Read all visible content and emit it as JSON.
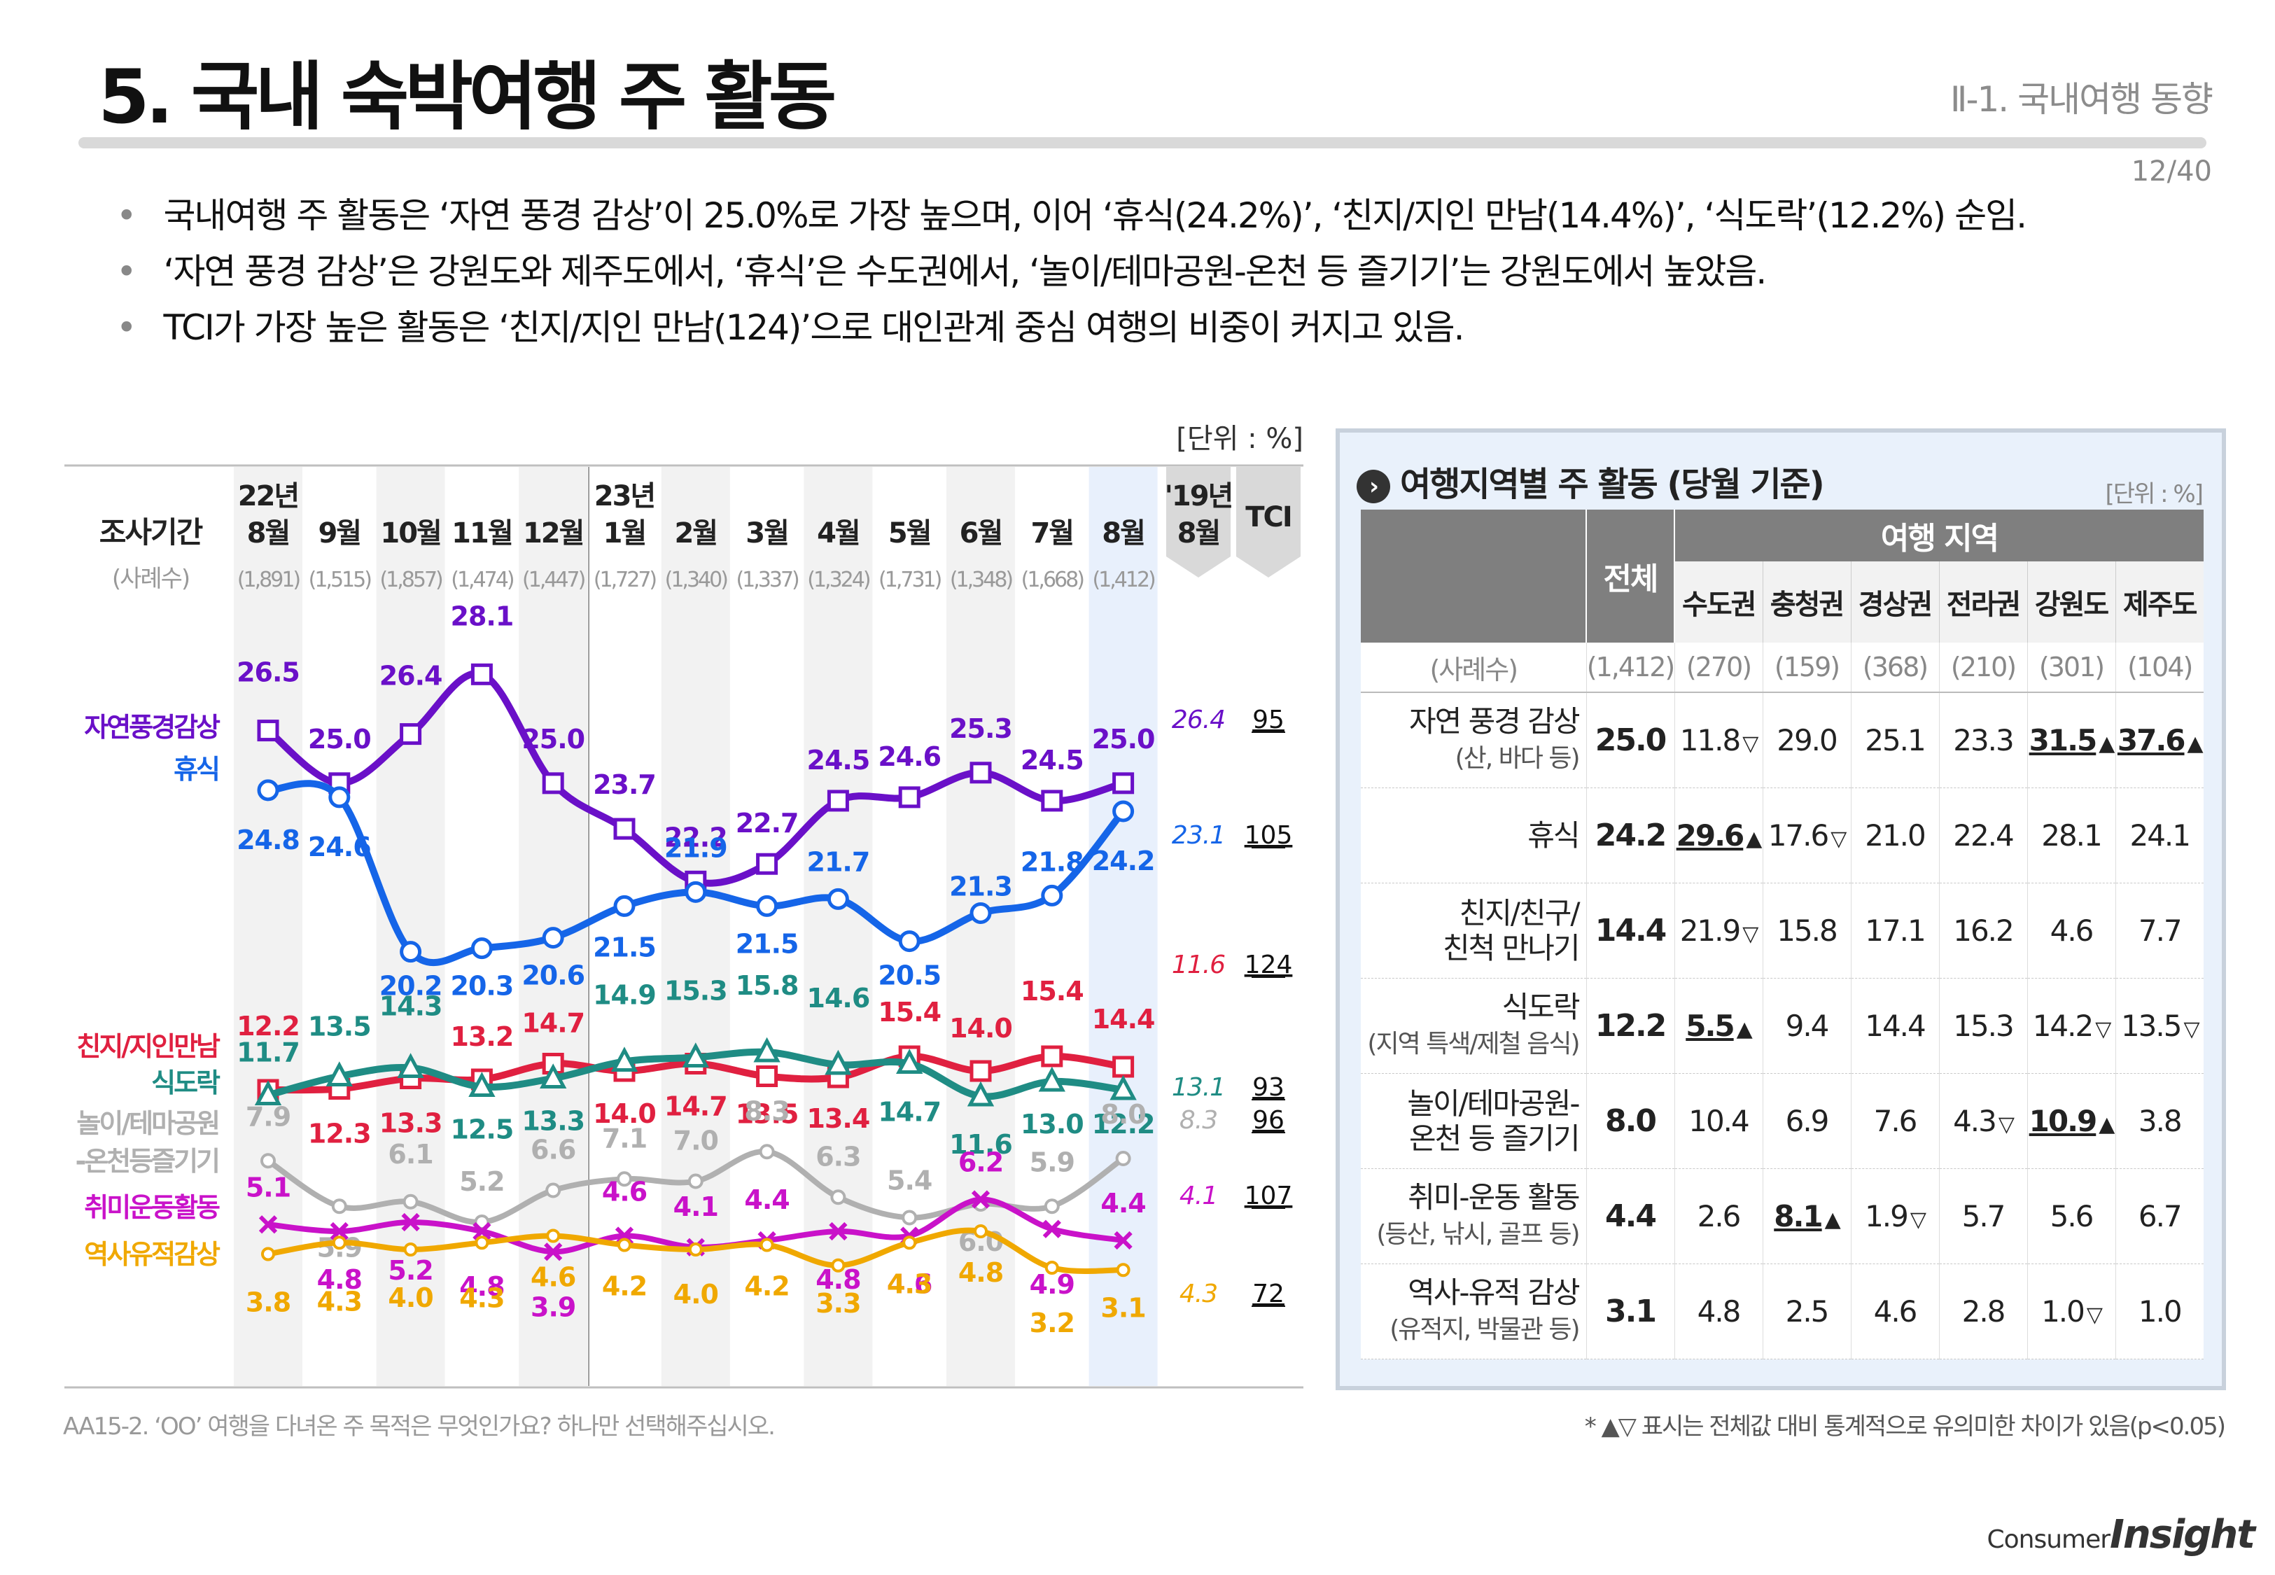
{
  "header": {
    "title": "5. 국내 숙박여행 주 활동",
    "section": "Ⅱ-1. 국내여행 동향",
    "page": "12/40"
  },
  "bullets": [
    "국내여행 주 활동은 ‘자연 풍경 감상’이 25.0%로 가장 높으며, 이어 ‘휴식(24.2%)’, ‘친지/지인 만남(14.4%)’, ‘식도락’(12.2%) 순임.",
    "‘자연 풍경 감상’은 강원도와 제주도에서, ‘휴식’은 수도권에서, ‘놀이/테마공원-온천 등 즐기기’는 강원도에서 높았음.",
    "TCI가 가장 높은 활동은 ‘친지/지인 만남(124)’으로 대인관계 중심 여행의 비중이 커지고 있음."
  ],
  "chart_data": {
    "type": "line",
    "unit_label": "[단위 : %]",
    "row_label": "조사기간",
    "n_label": "(사례수)",
    "categories": [
      "22년\n8월",
      "9월",
      "10월",
      "11월",
      "12월",
      "23년\n1월",
      "2월",
      "3월",
      "4월",
      "5월",
      "6월",
      "7월",
      "8월"
    ],
    "sample_sizes": [
      "(1,891)",
      "(1,515)",
      "(1,857)",
      "(1,474)",
      "(1,447)",
      "(1,727)",
      "(1,340)",
      "(1,337)",
      "(1,324)",
      "(1,731)",
      "(1,348)",
      "(1,668)",
      "(1,412)"
    ],
    "ref_header": "'19년\n8월",
    "tci_header": "TCI",
    "series": [
      {
        "name": "자연풍경감상",
        "color": "#6a10c8",
        "marker": "square",
        "values": [
          26.5,
          25.0,
          26.4,
          28.1,
          25.0,
          23.7,
          22.2,
          22.7,
          24.5,
          24.6,
          25.3,
          24.5,
          25.0
        ],
        "ref": "26.4",
        "tci": "95"
      },
      {
        "name": "휴식",
        "color": "#1565e8",
        "marker": "circle",
        "values": [
          24.8,
          24.6,
          20.2,
          20.3,
          20.6,
          21.5,
          21.9,
          21.5,
          21.7,
          20.5,
          21.3,
          21.8,
          24.2
        ],
        "ref": "23.1",
        "tci": "105"
      },
      {
        "name": "친지/지인만남",
        "color": "#e02040",
        "marker": "square",
        "values": [
          12.2,
          12.3,
          13.3,
          13.2,
          14.7,
          14.0,
          14.7,
          13.5,
          13.4,
          15.4,
          14.0,
          15.4,
          14.4
        ],
        "ref": "11.6",
        "tci": "124"
      },
      {
        "name": "식도락",
        "color": "#1f8c84",
        "marker": "triangle",
        "values": [
          11.7,
          13.5,
          14.3,
          12.5,
          13.3,
          14.9,
          15.3,
          15.8,
          14.6,
          14.7,
          11.6,
          13.0,
          12.2
        ],
        "ref": "13.1",
        "tci": "93"
      },
      {
        "name": "놀이/테마공원\n-온천등즐기기",
        "color": "#b0b0b0",
        "marker": "diamond",
        "values": [
          7.9,
          5.9,
          6.1,
          5.2,
          6.6,
          7.1,
          7.0,
          8.3,
          6.3,
          5.4,
          6.0,
          5.9,
          8.0
        ],
        "ref": "8.3",
        "tci": "96"
      },
      {
        "name": "취미운동활동",
        "color": "#c912c9",
        "marker": "x",
        "values": [
          5.1,
          4.8,
          5.2,
          4.8,
          3.9,
          4.6,
          4.1,
          4.4,
          4.8,
          4.6,
          6.2,
          4.9,
          4.4
        ],
        "ref": "4.1",
        "tci": "107"
      },
      {
        "name": "역사유적감상",
        "color": "#f0a800",
        "marker": "dot",
        "values": [
          3.8,
          4.3,
          4.0,
          4.3,
          4.6,
          4.2,
          4.0,
          4.2,
          3.3,
          4.3,
          4.8,
          3.2,
          3.1
        ],
        "ref": "4.3",
        "tci": "72"
      }
    ]
  },
  "region_table": {
    "title": "여행지역별 주 활동 (당월 기준)",
    "unit": "[단위 : %]",
    "total_header": "전체",
    "region_header": "여행 지역",
    "regions": [
      "수도권",
      "충청권",
      "경상권",
      "전라권",
      "강원도",
      "제주도"
    ],
    "n_label": "(사례수)",
    "n_values": [
      "(1,412)",
      "(270)",
      "(159)",
      "(368)",
      "(210)",
      "(301)",
      "(104)"
    ],
    "rows": [
      {
        "label": "자연 풍경 감상",
        "sub": "(산, 바다 등)",
        "total": "25.0",
        "cells": [
          {
            "v": "11.8",
            "m": "▽",
            "u": false
          },
          {
            "v": "29.0",
            "m": "",
            "u": false
          },
          {
            "v": "25.1",
            "m": "",
            "u": false
          },
          {
            "v": "23.3",
            "m": "",
            "u": false
          },
          {
            "v": "31.5",
            "m": "▲",
            "u": true
          },
          {
            "v": "37.6",
            "m": "▲",
            "u": true
          }
        ]
      },
      {
        "label": "휴식",
        "sub": "",
        "total": "24.2",
        "cells": [
          {
            "v": "29.6",
            "m": "▲",
            "u": true
          },
          {
            "v": "17.6",
            "m": "▽",
            "u": false
          },
          {
            "v": "21.0",
            "m": "",
            "u": false
          },
          {
            "v": "22.4",
            "m": "",
            "u": false
          },
          {
            "v": "28.1",
            "m": "",
            "u": false
          },
          {
            "v": "24.1",
            "m": "",
            "u": false
          }
        ]
      },
      {
        "label": "친지/친구/\n친척 만나기",
        "sub": "",
        "total": "14.4",
        "cells": [
          {
            "v": "21.9",
            "m": "▽",
            "u": false
          },
          {
            "v": "15.8",
            "m": "",
            "u": false
          },
          {
            "v": "17.1",
            "m": "",
            "u": false
          },
          {
            "v": "16.2",
            "m": "",
            "u": false
          },
          {
            "v": "4.6",
            "m": "",
            "u": false
          },
          {
            "v": "7.7",
            "m": "",
            "u": false
          }
        ]
      },
      {
        "label": "식도락",
        "sub": "(지역 특색/제철 음식)",
        "total": "12.2",
        "cells": [
          {
            "v": "5.5",
            "m": "▲",
            "u": true
          },
          {
            "v": "9.4",
            "m": "",
            "u": false
          },
          {
            "v": "14.4",
            "m": "",
            "u": false
          },
          {
            "v": "15.3",
            "m": "",
            "u": false
          },
          {
            "v": "14.2",
            "m": "▽",
            "u": false
          },
          {
            "v": "13.5",
            "m": "▽",
            "u": false
          }
        ]
      },
      {
        "label": "놀이/테마공원-\n온천 등 즐기기",
        "sub": "",
        "total": "8.0",
        "cells": [
          {
            "v": "10.4",
            "m": "",
            "u": false
          },
          {
            "v": "6.9",
            "m": "",
            "u": false
          },
          {
            "v": "7.6",
            "m": "",
            "u": false
          },
          {
            "v": "4.3",
            "m": "▽",
            "u": false
          },
          {
            "v": "10.9",
            "m": "▲",
            "u": true
          },
          {
            "v": "3.8",
            "m": "",
            "u": false
          }
        ]
      },
      {
        "label": "취미-운동 활동",
        "sub": "(등산, 낚시, 골프 등)",
        "total": "4.4",
        "cells": [
          {
            "v": "2.6",
            "m": "",
            "u": false
          },
          {
            "v": "8.1",
            "m": "▲",
            "u": true
          },
          {
            "v": "1.9",
            "m": "▽",
            "u": false
          },
          {
            "v": "5.7",
            "m": "",
            "u": false
          },
          {
            "v": "5.6",
            "m": "",
            "u": false
          },
          {
            "v": "6.7",
            "m": "",
            "u": false
          }
        ]
      },
      {
        "label": "역사-유적 감상",
        "sub": "(유적지, 박물관 등)",
        "total": "3.1",
        "cells": [
          {
            "v": "4.8",
            "m": "",
            "u": false
          },
          {
            "v": "2.5",
            "m": "",
            "u": false
          },
          {
            "v": "4.6",
            "m": "",
            "u": false
          },
          {
            "v": "2.8",
            "m": "",
            "u": false
          },
          {
            "v": "1.0",
            "m": "▽",
            "u": false
          },
          {
            "v": "1.0",
            "m": "",
            "u": false
          }
        ]
      }
    ]
  },
  "footnotes": {
    "question": "AA15-2. ‘OO’ 여행을 다녀온 주 목적은 무엇인가요? 하나만 선택해주십시오.",
    "significance": "* ▲▽ 표시는 전체값 대비 통계적으로 유의미한 차이가 있음(p<0.05)"
  },
  "logo": {
    "top": "Consumer",
    "bottom": "Insight"
  }
}
